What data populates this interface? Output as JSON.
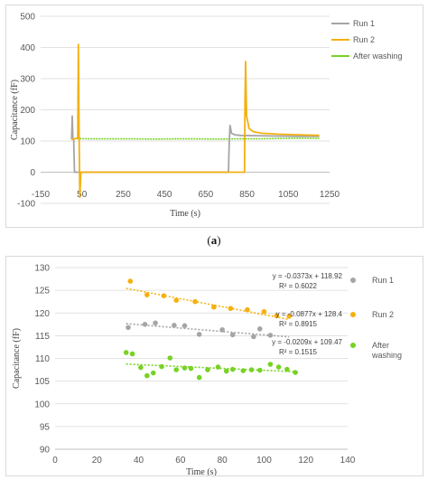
{
  "caption": {
    "open": "(",
    "label": "a",
    "close": ")"
  },
  "colors": {
    "run1": "#a5a5a5",
    "run2": "#f5b010",
    "after": "#77d224",
    "grid": "#d9d9d9",
    "axis": "#bfbfbf"
  },
  "chart_data": [
    {
      "type": "line",
      "xlabel": "Time (s)",
      "ylabel": "Capacitance (fF)",
      "xlim": [
        -150,
        1250
      ],
      "ylim": [
        -100,
        500
      ],
      "xticks": [
        "-150",
        "50",
        "250",
        "450",
        "650",
        "850",
        "1050",
        "1250"
      ],
      "xtick_values": [
        -150,
        50,
        250,
        450,
        650,
        850,
        1050,
        1250
      ],
      "yticks": [
        "-100",
        "0",
        "100",
        "200",
        "300",
        "400",
        "500"
      ],
      "ytick_values": [
        -100,
        0,
        100,
        200,
        300,
        400,
        500
      ],
      "grid": "horizontal",
      "legend_position": "right",
      "series": [
        {
          "name": "Run 1",
          "color": "#a5a5a5",
          "x": [
            0,
            3,
            6,
            10,
            14,
            17,
            20,
            25,
            760,
            764,
            768,
            775,
            790,
            820,
            900,
            1000,
            1100,
            1200
          ],
          "y": [
            105,
            180,
            110,
            105,
            0,
            0,
            0,
            0,
            0,
            100,
            150,
            125,
            120,
            118,
            117,
            116,
            115,
            115
          ]
        },
        {
          "name": "Run 2",
          "color": "#f5b010",
          "x": [
            0,
            20,
            30,
            33,
            36,
            40,
            45,
            60,
            835,
            838,
            840,
            843,
            848,
            860,
            880,
            920,
            1000,
            1100,
            1200
          ],
          "y": [
            105,
            108,
            110,
            410,
            150,
            -80,
            0,
            0,
            0,
            0,
            220,
            355,
            180,
            140,
            130,
            125,
            122,
            120,
            118
          ]
        },
        {
          "name": "After washing",
          "color": "#77d224",
          "x": [
            0,
            100,
            200,
            300,
            400,
            500,
            600,
            700,
            800,
            900,
            1000,
            1100,
            1200
          ],
          "y": [
            108,
            107,
            107,
            107,
            106,
            107,
            107,
            106,
            107,
            107,
            108,
            109,
            108
          ]
        }
      ]
    },
    {
      "type": "scatter",
      "xlabel": "Time (s)",
      "ylabel": "Capacitance (fF)",
      "xlim": [
        0,
        140
      ],
      "ylim": [
        90,
        130
      ],
      "xticks": [
        "0",
        "20",
        "40",
        "60",
        "80",
        "100",
        "120",
        "140"
      ],
      "xtick_values": [
        0,
        20,
        40,
        60,
        80,
        100,
        120,
        140
      ],
      "yticks": [
        "90",
        "95",
        "100",
        "105",
        "110",
        "115",
        "120",
        "125",
        "130"
      ],
      "ytick_values": [
        90,
        95,
        100,
        105,
        110,
        115,
        120,
        125,
        130
      ],
      "grid": "horizontal",
      "legend_position": "right",
      "series": [
        {
          "name": "Run 1",
          "color": "#a5a5a5",
          "equation": "y = -0.0373x + 118.92",
          "r2": "R² = 0.6022",
          "trend": {
            "slope": -0.0373,
            "intercept": 118.92,
            "x_range": [
              34,
              112
            ]
          },
          "x": [
            35,
            43,
            48,
            57,
            62,
            69,
            80,
            85,
            95,
            98,
            103
          ],
          "y": [
            116.8,
            117.5,
            117.8,
            117.3,
            117.2,
            115.3,
            116.3,
            115.2,
            114.8,
            116.5,
            115.1
          ]
        },
        {
          "name": "Run 2",
          "color": "#f5b010",
          "equation": "y = -0.0877x + 128.4",
          "r2": "R² = 0.8915",
          "trend": {
            "slope": -0.0877,
            "intercept": 128.4,
            "x_range": [
              34,
              112
            ]
          },
          "x": [
            36,
            44,
            52,
            58,
            67,
            76,
            84,
            92,
            100,
            106,
            112
          ],
          "y": [
            127,
            124,
            123.8,
            122.8,
            122.5,
            121.3,
            121,
            120.7,
            120.3,
            119.4,
            119.3
          ]
        },
        {
          "name": "After washing",
          "color": "#77d224",
          "equation": "y = -0.0209x + 109.47",
          "r2": "R² = 0.1515",
          "trend": {
            "slope": -0.0209,
            "intercept": 109.47,
            "x_range": [
              34,
              116
            ]
          },
          "x": [
            34,
            37,
            41,
            44,
            47,
            51,
            55,
            58,
            62,
            65,
            69,
            73,
            78,
            82,
            85,
            90,
            94,
            98,
            103,
            107,
            111,
            115
          ],
          "y": [
            111.3,
            111,
            108,
            106.2,
            106.8,
            108.2,
            110.1,
            107.5,
            107.9,
            107.8,
            105.8,
            107.5,
            108.1,
            107.2,
            107.6,
            107.3,
            107.5,
            107.4,
            108.7,
            108.1,
            107.6,
            106.9
          ]
        }
      ]
    }
  ]
}
